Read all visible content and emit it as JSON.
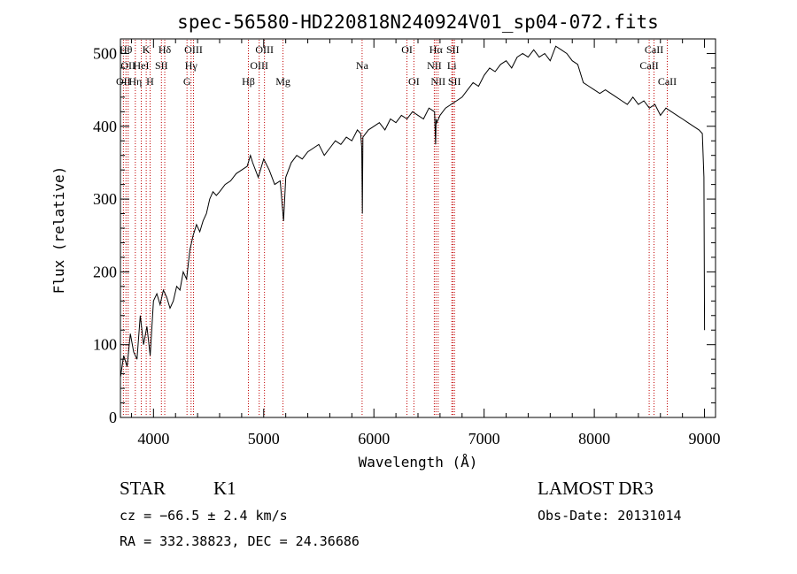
{
  "chart_data": {
    "type": "line",
    "title": "spec-56580-HD220818N240924V01_sp04-072.fits",
    "xlabel": "Wavelength (Å)",
    "ylabel": "Flux (relative)",
    "xlim": [
      3700,
      9100
    ],
    "ylim": [
      0,
      520
    ],
    "xticks": [
      4000,
      5000,
      6000,
      7000,
      8000,
      9000
    ],
    "yticks": [
      0,
      100,
      200,
      300,
      400,
      500
    ],
    "series": [
      {
        "name": "flux",
        "x": [
          3700,
          3730,
          3760,
          3790,
          3820,
          3850,
          3880,
          3910,
          3940,
          3970,
          4000,
          4030,
          4060,
          4090,
          4120,
          4150,
          4180,
          4210,
          4240,
          4270,
          4300,
          4330,
          4360,
          4390,
          4420,
          4450,
          4480,
          4510,
          4540,
          4570,
          4600,
          4650,
          4700,
          4750,
          4800,
          4850,
          4880,
          4900,
          4950,
          5000,
          5050,
          5100,
          5150,
          5180,
          5200,
          5250,
          5300,
          5350,
          5400,
          5450,
          5500,
          5550,
          5600,
          5650,
          5700,
          5750,
          5800,
          5850,
          5880,
          5890,
          5895,
          5900,
          5950,
          6000,
          6050,
          6100,
          6150,
          6200,
          6250,
          6300,
          6350,
          6400,
          6450,
          6500,
          6550,
          6560,
          6565,
          6570,
          6600,
          6650,
          6700,
          6750,
          6800,
          6850,
          6900,
          6950,
          7000,
          7050,
          7100,
          7150,
          7200,
          7250,
          7300,
          7350,
          7400,
          7450,
          7500,
          7550,
          7600,
          7650,
          7700,
          7750,
          7800,
          7850,
          7900,
          7950,
          8000,
          8050,
          8100,
          8150,
          8200,
          8250,
          8300,
          8350,
          8400,
          8450,
          8500,
          8550,
          8600,
          8650,
          8700,
          8750,
          8800,
          8850,
          8900,
          8950,
          8980,
          8995,
          9000
        ],
        "y": [
          55,
          85,
          70,
          115,
          90,
          80,
          140,
          100,
          125,
          85,
          160,
          170,
          155,
          175,
          165,
          150,
          160,
          180,
          175,
          200,
          190,
          230,
          250,
          265,
          255,
          270,
          280,
          300,
          310,
          305,
          310,
          320,
          325,
          335,
          340,
          345,
          360,
          350,
          330,
          355,
          340,
          320,
          325,
          270,
          330,
          350,
          360,
          355,
          365,
          370,
          375,
          360,
          370,
          380,
          375,
          385,
          380,
          395,
          390,
          370,
          280,
          385,
          395,
          400,
          405,
          395,
          410,
          405,
          415,
          410,
          420,
          415,
          410,
          425,
          420,
          375,
          410,
          405,
          415,
          425,
          430,
          435,
          440,
          450,
          460,
          455,
          470,
          480,
          475,
          485,
          490,
          480,
          495,
          500,
          495,
          505,
          495,
          500,
          490,
          510,
          505,
          500,
          490,
          485,
          460,
          455,
          450,
          445,
          450,
          445,
          440,
          435,
          430,
          440,
          430,
          435,
          425,
          430,
          415,
          425,
          420,
          415,
          410,
          405,
          400,
          395,
          390,
          330,
          120
        ]
      }
    ],
    "lines": [
      {
        "x": 3727,
        "label": "OII",
        "row": 2
      },
      {
        "x": 3750,
        "label": "Hθ",
        "row": 0
      },
      {
        "x": 3770,
        "label": "OII",
        "row": 1
      },
      {
        "x": 3835,
        "label": "Hη",
        "row": 2
      },
      {
        "x": 3889,
        "label": "HeI",
        "row": 1
      },
      {
        "x": 3934,
        "label": "K",
        "row": 0
      },
      {
        "x": 3969,
        "label": "H",
        "row": 2
      },
      {
        "x": 4072,
        "label": "SII",
        "row": 1
      },
      {
        "x": 4102,
        "label": "Hδ",
        "row": 0
      },
      {
        "x": 4304,
        "label": "G",
        "row": 2
      },
      {
        "x": 4341,
        "label": "Hγ",
        "row": 1
      },
      {
        "x": 4363,
        "label": "OIII",
        "row": 0
      },
      {
        "x": 4861,
        "label": "Hβ",
        "row": 2
      },
      {
        "x": 4959,
        "label": "OIII",
        "row": 1
      },
      {
        "x": 5007,
        "label": "OIII",
        "row": 0
      },
      {
        "x": 5175,
        "label": "Mg",
        "row": 2
      },
      {
        "x": 5893,
        "label": "Na",
        "row": 1
      },
      {
        "x": 6300,
        "label": "OI",
        "row": 0
      },
      {
        "x": 6363,
        "label": "OI",
        "row": 2
      },
      {
        "x": 6548,
        "label": "NII",
        "row": 1
      },
      {
        "x": 6563,
        "label": "Hα",
        "row": 0
      },
      {
        "x": 6583,
        "label": "NII",
        "row": 2
      },
      {
        "x": 6707,
        "label": "Li",
        "row": 1
      },
      {
        "x": 6716,
        "label": "SII",
        "row": 0
      },
      {
        "x": 6731,
        "label": "SII",
        "row": 2
      },
      {
        "x": 8498,
        "label": "CaII",
        "row": 1
      },
      {
        "x": 8542,
        "label": "CaII",
        "row": 0
      },
      {
        "x": 8662,
        "label": "CaII",
        "row": 2
      }
    ]
  },
  "footer": {
    "object_class": "STAR",
    "subclass": "K1",
    "survey": "LAMOST DR3",
    "cz": "cz = −66.5 ± 2.4 km/s",
    "obs_date": "Obs-Date: 20131014",
    "coords": "RA = 332.38823, DEC =  24.36686"
  },
  "colors": {
    "spectrum": "#000000",
    "line_marker": "#c00000"
  }
}
